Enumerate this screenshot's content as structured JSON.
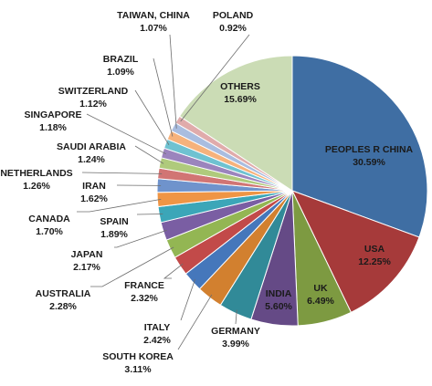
{
  "chart_data": {
    "type": "pie",
    "title": "",
    "start_angle_deg": 0,
    "direction": "clockwise",
    "slices": [
      {
        "label": "PEOPLES R CHINA",
        "value": 30.59,
        "value_label": "30.59%",
        "color": "#3f6ea3"
      },
      {
        "label": "USA",
        "value": 12.25,
        "value_label": "12.25%",
        "color": "#a63a3a"
      },
      {
        "label": "UK",
        "value": 6.49,
        "value_label": "6.49%",
        "color": "#7d9a41"
      },
      {
        "label": "INDIA",
        "value": 5.6,
        "value_label": "5.60%",
        "color": "#654a86"
      },
      {
        "label": "GERMANY",
        "value": 3.99,
        "value_label": "3.99%",
        "color": "#318a98"
      },
      {
        "label": "SOUTH KOREA",
        "value": 3.11,
        "value_label": "3.11%",
        "color": "#d2802f"
      },
      {
        "label": "ITALY",
        "value": 2.42,
        "value_label": "2.42%",
        "color": "#4577bb"
      },
      {
        "label": "FRANCE",
        "value": 2.32,
        "value_label": "2.32%",
        "color": "#c24a49"
      },
      {
        "label": "AUSTRALIA",
        "value": 2.28,
        "value_label": "2.28%",
        "color": "#93b653"
      },
      {
        "label": "JAPAN",
        "value": 2.17,
        "value_label": "2.17%",
        "color": "#7a5ea3"
      },
      {
        "label": "SPAIN",
        "value": 1.89,
        "value_label": "1.89%",
        "color": "#3ba6b8"
      },
      {
        "label": "CANADA",
        "value": 1.7,
        "value_label": "1.70%",
        "color": "#ef9545"
      },
      {
        "label": "IRAN",
        "value": 1.62,
        "value_label": "1.62%",
        "color": "#6f93cc"
      },
      {
        "label": "NETHERLANDS",
        "value": 1.26,
        "value_label": "1.26%",
        "color": "#d17574"
      },
      {
        "label": "SAUDI ARABIA",
        "value": 1.24,
        "value_label": "1.24%",
        "color": "#afca7c"
      },
      {
        "label": "SINGAPORE",
        "value": 1.18,
        "value_label": "1.18%",
        "color": "#9b84bd"
      },
      {
        "label": "SWITZERLAND",
        "value": 1.12,
        "value_label": "1.12%",
        "color": "#6fc2d1"
      },
      {
        "label": "BRAZIL",
        "value": 1.09,
        "value_label": "1.09%",
        "color": "#f6b27c"
      },
      {
        "label": "TAIWAN, CHINA",
        "value": 1.07,
        "value_label": "1.07%",
        "color": "#a9bde0"
      },
      {
        "label": "POLAND",
        "value": 0.92,
        "value_label": "0.92%",
        "color": "#e0abab"
      },
      {
        "label": "OTHERS",
        "value": 15.69,
        "value_label": "15.69%",
        "color": "#cbdcb5"
      }
    ]
  }
}
